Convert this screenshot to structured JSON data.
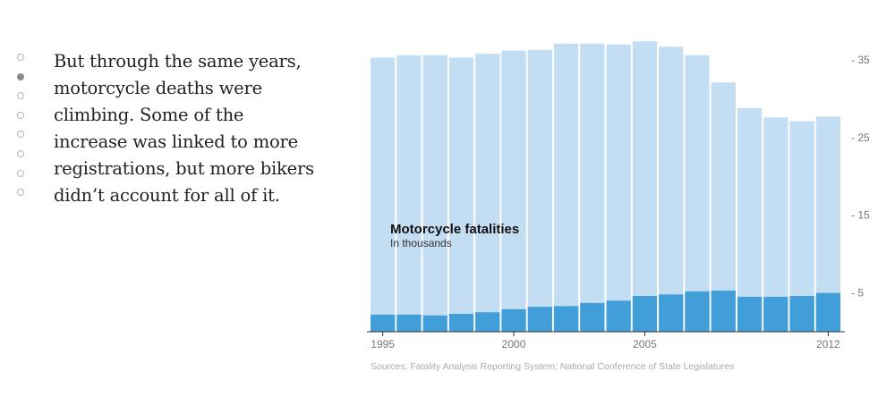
{
  "nav": {
    "dots": [
      {
        "active": false
      },
      {
        "active": true
      },
      {
        "active": false
      },
      {
        "active": false
      },
      {
        "active": false
      },
      {
        "active": false
      },
      {
        "active": false
      },
      {
        "active": false
      }
    ]
  },
  "story": {
    "text": "But through the same years, motorcycle deaths were climbing. Some of the increase was linked to more registrations, but more bikers didn’t account for all of it."
  },
  "chart_data": {
    "type": "bar",
    "title": "Motorcycle fatalities",
    "subtitle": "In thousands",
    "categories": [
      "1995",
      "1996",
      "1997",
      "1998",
      "1999",
      "2000",
      "2001",
      "2002",
      "2003",
      "2004",
      "2005",
      "2006",
      "2007",
      "2008",
      "2009",
      "2010",
      "2011",
      "2012"
    ],
    "x_tick_labels": [
      "1995",
      "2000",
      "2005",
      "2012"
    ],
    "y_ticks": [
      5,
      15,
      25,
      35
    ],
    "ylim": [
      0,
      36.5
    ],
    "series": [
      {
        "values": [
          35.3,
          35.6,
          35.6,
          35.3,
          35.8,
          36.2,
          36.3,
          37.1,
          37.1,
          37.0,
          37.4,
          36.7,
          35.6,
          32.1,
          28.8,
          27.6,
          27.1,
          27.7
        ],
        "color": "#c3ddf2"
      },
      {
        "values": [
          2.2,
          2.2,
          2.1,
          2.3,
          2.5,
          2.9,
          3.2,
          3.3,
          3.7,
          4.0,
          4.6,
          4.8,
          5.2,
          5.3,
          4.5,
          4.5,
          4.6,
          5.0
        ],
        "color": "#419ed8"
      }
    ],
    "source": "Sources: Fatality Analysis Reporting System; National Conference of State Legislatures"
  }
}
